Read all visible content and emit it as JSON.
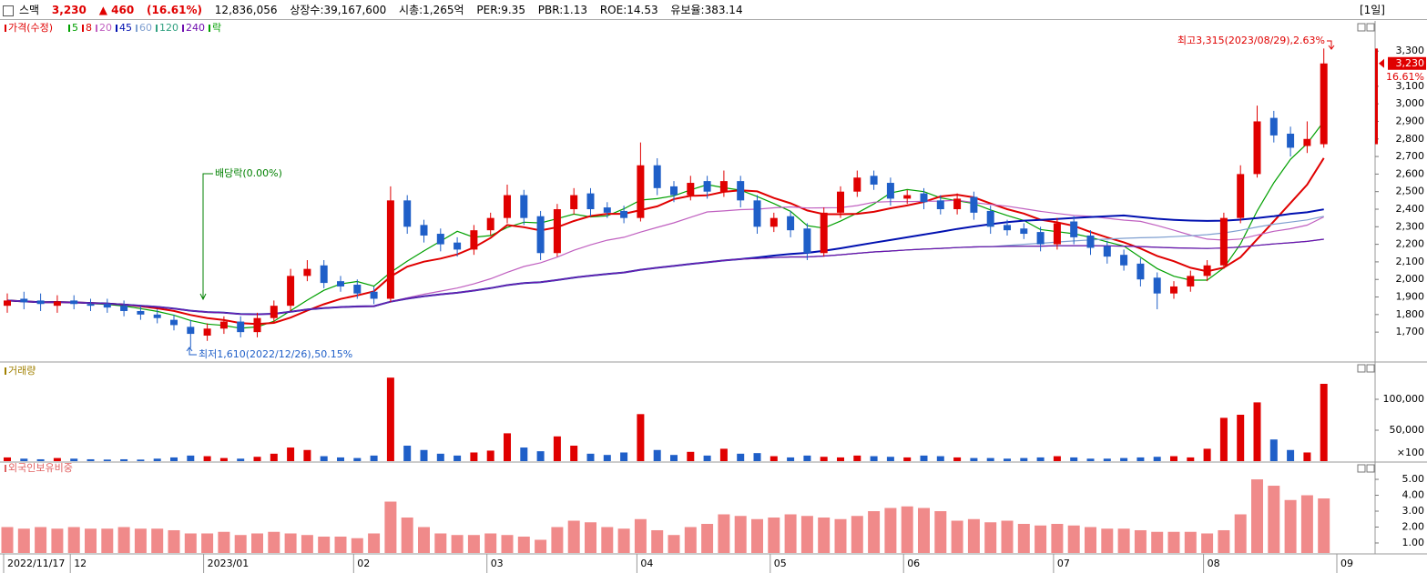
{
  "header": {
    "name": "스맥",
    "price": "3,230",
    "change": "▲ 460",
    "change_pct": "(16.61%)",
    "volume": "12,836,056",
    "listed": "상장수:39,167,600",
    "market_cap": "시총:1,265억",
    "per": "PER:9.35",
    "pbr": "PBR:1.13",
    "roe": "ROE:14.53",
    "reserve": "유보율:383.14",
    "period": "[1일]"
  },
  "chart_data": [
    {
      "type": "candlestick",
      "title": "가격(수정)",
      "title_color": "#e00000",
      "up_color": "#e00000",
      "down_color": "#1f5fc8",
      "categories": [
        "2022/11/17",
        null,
        null,
        null,
        "12",
        null,
        null,
        null,
        null,
        null,
        null,
        null,
        "2023/01",
        null,
        null,
        null,
        null,
        null,
        null,
        null,
        null,
        "02",
        null,
        null,
        null,
        null,
        null,
        null,
        null,
        "03",
        null,
        null,
        null,
        null,
        null,
        null,
        null,
        null,
        "04",
        null,
        null,
        null,
        null,
        null,
        null,
        null,
        "05",
        null,
        null,
        null,
        null,
        null,
        null,
        null,
        "06",
        null,
        null,
        null,
        null,
        null,
        null,
        null,
        null,
        "07",
        null,
        null,
        null,
        null,
        null,
        null,
        null,
        null,
        "08",
        null,
        null,
        null,
        null,
        null,
        null,
        null,
        "09"
      ],
      "open": [
        1850,
        1890,
        1880,
        1850,
        1880,
        1860,
        1860,
        1850,
        1820,
        1800,
        1770,
        1730,
        1680,
        1720,
        1760,
        1700,
        1780,
        1850,
        2020,
        2080,
        1990,
        1970,
        1930,
        1890,
        2450,
        2310,
        2260,
        2210,
        2170,
        2280,
        2350,
        2480,
        2360,
        2150,
        2400,
        2490,
        2410,
        2390,
        2350,
        2650,
        2530,
        2480,
        2560,
        2500,
        2560,
        2450,
        2300,
        2360,
        2290,
        2150,
        2380,
        2500,
        2590,
        2550,
        2460,
        2490,
        2450,
        2400,
        2470,
        2390,
        2310,
        2290,
        2270,
        2200,
        2330,
        2250,
        2190,
        2140,
        2090,
        2010,
        1920,
        1960,
        2020,
        2080,
        2350,
        2600,
        2920,
        2830,
        2760,
        2770,
        null
      ],
      "high": [
        1920,
        1930,
        1920,
        1910,
        1910,
        1890,
        1890,
        1880,
        1850,
        1830,
        1800,
        1770,
        1750,
        1790,
        1790,
        1810,
        1880,
        2060,
        2110,
        2110,
        2020,
        2000,
        1960,
        2530,
        2480,
        2340,
        2290,
        2240,
        2310,
        2380,
        2540,
        2510,
        2390,
        2430,
        2520,
        2520,
        2440,
        2420,
        2780,
        2690,
        2560,
        2590,
        2590,
        2620,
        2590,
        2480,
        2380,
        2390,
        2320,
        2410,
        2530,
        2620,
        2620,
        2580,
        2510,
        2520,
        2480,
        2490,
        2500,
        2420,
        2340,
        2320,
        2300,
        2350,
        2360,
        2280,
        2220,
        2170,
        2120,
        2040,
        1990,
        2050,
        2110,
        2380,
        2650,
        2990,
        2960,
        2870,
        2900,
        3315,
        null
      ],
      "low": [
        1810,
        1830,
        1820,
        1810,
        1830,
        1820,
        1810,
        1790,
        1770,
        1750,
        1710,
        1610,
        1650,
        1690,
        1670,
        1670,
        1750,
        1820,
        1990,
        1950,
        1930,
        1890,
        1860,
        1870,
        2260,
        2210,
        2160,
        2130,
        2140,
        2250,
        2320,
        2310,
        2110,
        2130,
        2370,
        2360,
        2350,
        2320,
        2330,
        2480,
        2440,
        2450,
        2460,
        2470,
        2410,
        2260,
        2270,
        2240,
        2110,
        2130,
        2350,
        2470,
        2510,
        2420,
        2430,
        2400,
        2370,
        2370,
        2340,
        2260,
        2250,
        2230,
        2160,
        2170,
        2200,
        2140,
        2090,
        2050,
        1960,
        1830,
        1890,
        1930,
        1990,
        2060,
        2320,
        2580,
        2780,
        2700,
        2720,
        2750,
        null
      ],
      "close": [
        1880,
        1870,
        1860,
        1875,
        1860,
        1850,
        1840,
        1820,
        1800,
        1780,
        1740,
        1690,
        1720,
        1760,
        1700,
        1780,
        1850,
        2020,
        2060,
        1980,
        1960,
        1920,
        1890,
        2450,
        2300,
        2250,
        2200,
        2170,
        2280,
        2350,
        2480,
        2350,
        2150,
        2400,
        2480,
        2400,
        2380,
        2350,
        2650,
        2520,
        2480,
        2550,
        2500,
        2560,
        2450,
        2300,
        2350,
        2280,
        2150,
        2380,
        2500,
        2580,
        2540,
        2460,
        2480,
        2440,
        2400,
        2460,
        2380,
        2300,
        2280,
        2260,
        2200,
        2320,
        2240,
        2180,
        2130,
        2080,
        2000,
        1920,
        1960,
        2020,
        2080,
        2350,
        2600,
        2900,
        2820,
        2750,
        2800,
        3230,
        null
      ],
      "ylim": [
        1535,
        3410
      ],
      "yticks": [
        {
          "value": 1700,
          "label": "1,700"
        },
        {
          "value": 1800,
          "label": "1,800"
        },
        {
          "value": 1900,
          "label": "1,900"
        },
        {
          "value": 2000,
          "label": "2,000"
        },
        {
          "value": 2100,
          "label": "2,100"
        },
        {
          "value": 2200,
          "label": "2,200"
        },
        {
          "value": 2300,
          "label": "2,300"
        },
        {
          "value": 2400,
          "label": "2,400"
        },
        {
          "value": 2500,
          "label": "2,500"
        },
        {
          "value": 2600,
          "label": "2,600"
        },
        {
          "value": 2700,
          "label": "2,700"
        },
        {
          "value": 2800,
          "label": "2,800"
        },
        {
          "value": 2900,
          "label": "2,900"
        },
        {
          "value": 3000,
          "label": "3,000"
        },
        {
          "value": 3100,
          "label": "3,100"
        },
        {
          "value": 3300,
          "label": "3,300"
        }
      ],
      "moving_averages": [
        {
          "name": "5",
          "color": "#00a000"
        },
        {
          "name": "8",
          "color": "#e00000"
        },
        {
          "name": "20",
          "color": "#c060c0"
        },
        {
          "name": "45",
          "color": "#0010b0"
        },
        {
          "name": "60",
          "color": "#7f9fd0"
        },
        {
          "name": "120",
          "color": "#30a080"
        },
        {
          "name": "240",
          "color": "#7010b0"
        }
      ],
      "legend_extra": {
        "name": "락",
        "color": "#00a000"
      },
      "annotations": {
        "high_note": "최고3,315(2023/08/29),2.63%",
        "low_note": "최저1,610(2022/12/26),50.15%",
        "dividend_note": "배당락(0.00%)",
        "last_price_label": "3,230",
        "last_change_label": "16.61%"
      }
    },
    {
      "type": "bar",
      "title": "거래량",
      "title_color": "#a08000",
      "values": [
        6000,
        4000,
        3000,
        5000,
        4000,
        3000,
        2500,
        3000,
        2500,
        4000,
        6000,
        9000,
        8000,
        5000,
        4000,
        7000,
        12000,
        22000,
        18000,
        8000,
        6000,
        5000,
        9000,
        135000,
        25000,
        18000,
        12000,
        9000,
        14000,
        17000,
        45000,
        22000,
        16000,
        40000,
        25000,
        12000,
        10000,
        14000,
        76000,
        18000,
        10000,
        15000,
        9000,
        20000,
        12000,
        13000,
        8000,
        6000,
        9000,
        7000,
        6000,
        9000,
        8000,
        7000,
        6000,
        9000,
        8000,
        6000,
        5000,
        5000,
        4000,
        5000,
        6000,
        8000,
        6000,
        4000,
        4000,
        5000,
        6000,
        7000,
        8000,
        6000,
        20000,
        70000,
        75000,
        95000,
        35000,
        18000,
        14000,
        125000,
        null
      ],
      "ylim": [
        0,
        150000
      ],
      "yticks": [
        {
          "value": 50000,
          "label": "50,000"
        },
        {
          "value": 100000,
          "label": "100,000"
        }
      ],
      "unit_label": "×100"
    },
    {
      "type": "bar",
      "title": "외국인보유비중",
      "title_color": "#e06060",
      "color": "#f08a8a",
      "values": [
        2.0,
        1.9,
        2.0,
        1.9,
        2.0,
        1.9,
        1.9,
        2.0,
        1.9,
        1.9,
        1.8,
        1.6,
        1.6,
        1.7,
        1.5,
        1.6,
        1.7,
        1.6,
        1.5,
        1.4,
        1.4,
        1.3,
        1.6,
        3.6,
        2.6,
        2.0,
        1.6,
        1.5,
        1.5,
        1.6,
        1.5,
        1.4,
        1.2,
        2.0,
        2.4,
        2.3,
        2.0,
        1.9,
        2.5,
        1.8,
        1.5,
        2.0,
        2.2,
        2.8,
        2.7,
        2.5,
        2.6,
        2.8,
        2.7,
        2.6,
        2.5,
        2.7,
        3.0,
        3.2,
        3.3,
        3.2,
        3.0,
        2.4,
        2.5,
        2.3,
        2.4,
        2.2,
        2.1,
        2.2,
        2.1,
        2.0,
        1.9,
        1.9,
        1.8,
        1.7,
        1.7,
        1.7,
        1.6,
        1.8,
        2.8,
        5.0,
        4.6,
        3.7,
        4.0,
        3.8,
        null
      ],
      "ylim": [
        0.37,
        5.86
      ],
      "yticks": [
        {
          "value": 1,
          "label": "1.00"
        },
        {
          "value": 2,
          "label": "2.00"
        },
        {
          "value": 3,
          "label": "3.00"
        },
        {
          "value": 4,
          "label": "4.00"
        },
        {
          "value": 5,
          "label": "5.00"
        }
      ]
    }
  ]
}
